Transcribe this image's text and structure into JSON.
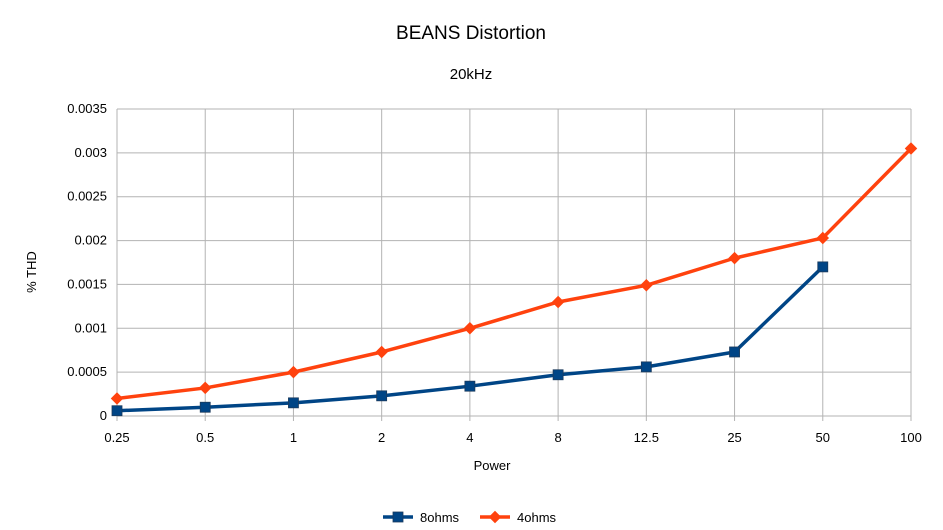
{
  "chart_data": {
    "type": "line",
    "title": "BEANS Distortion",
    "subtitle": "20kHz",
    "xlabel": "Power",
    "ylabel": "% THD",
    "categories": [
      "0.25",
      "0.5",
      "1",
      "2",
      "4",
      "8",
      "12.5",
      "25",
      "50",
      "100"
    ],
    "yticks": [
      "0",
      "0.0005",
      "0.001",
      "0.0015",
      "0.002",
      "0.0025",
      "0.003",
      "0.0035"
    ],
    "ylim": [
      0,
      0.0035
    ],
    "grid": true,
    "legend_position": "bottom",
    "series": [
      {
        "name": "8ohms",
        "color": "#004586",
        "marker": "square",
        "values": [
          6e-05,
          0.0001,
          0.00015,
          0.00023,
          0.00034,
          0.00047,
          0.00056,
          0.00073,
          0.0017,
          null
        ]
      },
      {
        "name": "4ohms",
        "color": "#ff420e",
        "marker": "diamond",
        "values": [
          0.0002,
          0.00032,
          0.0005,
          0.00073,
          0.001,
          0.0013,
          0.00149,
          0.0018,
          0.00203,
          0.00305
        ]
      }
    ]
  }
}
